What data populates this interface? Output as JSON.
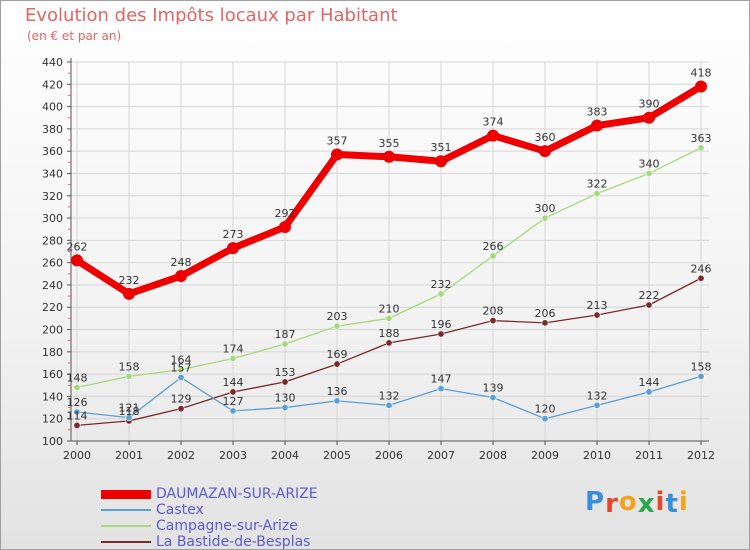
{
  "header": {
    "title": "Evolution des Impôts locaux par Habitant",
    "subtitle": "(en € et par an)"
  },
  "logo": {
    "letters": [
      "P",
      "r",
      "o",
      "x",
      "i",
      "t",
      "i"
    ],
    "colors": [
      "#3a8fd8",
      "#e8462a",
      "#f2a21b",
      "#2aa84a",
      "#e8462a",
      "#3a8fd8",
      "#f2a21b"
    ]
  },
  "colors": {
    "title": "#e46464",
    "axis_labels": "#333333",
    "grid": "#d6d6d6",
    "legend_text": "#5a5ad2"
  },
  "chart_data": {
    "type": "line",
    "title": "Evolution des Impôts locaux par Habitant",
    "subtitle": "(en € et par an)",
    "xlabel": "",
    "ylabel": "",
    "x": [
      "2000",
      "2001",
      "2002",
      "2003",
      "2004",
      "2005",
      "2006",
      "2007",
      "2008",
      "2009",
      "2010",
      "2011",
      "2012"
    ],
    "ylim": [
      100,
      440
    ],
    "yticks": [
      100,
      120,
      140,
      160,
      180,
      200,
      220,
      240,
      260,
      280,
      300,
      320,
      340,
      360,
      380,
      400,
      420,
      440
    ],
    "grid": true,
    "legend_position": "bottom-left",
    "series": [
      {
        "name": "DAUMAZAN-SUR-ARIZE",
        "color": "#ee0000",
        "width": 7,
        "marker_radius": 6,
        "values": [
          262,
          232,
          248,
          273,
          292,
          357,
          355,
          351,
          374,
          360,
          383,
          390,
          418
        ],
        "labels": [
          "262",
          "232",
          "248",
          "273",
          "292",
          "357",
          "355",
          "351",
          "374",
          "360",
          "383",
          "390",
          "418"
        ]
      },
      {
        "name": "Castex",
        "color": "#5b9fd4",
        "width": 1.3,
        "marker_radius": 3.2,
        "values": [
          126,
          121,
          157,
          127,
          130,
          136,
          132,
          147,
          139,
          120,
          132,
          144,
          158
        ],
        "labels": [
          "126",
          "121",
          "157",
          "127",
          "130",
          "136",
          "132",
          "147",
          "139",
          "120",
          "132",
          "144",
          "158"
        ]
      },
      {
        "name": "Campagne-sur-Arize",
        "color": "#a6d97a",
        "width": 1.3,
        "marker_radius": 3.2,
        "values": [
          148,
          158,
          164,
          174,
          187,
          203,
          210,
          232,
          266,
          300,
          322,
          340,
          363
        ],
        "labels": [
          "148",
          "158",
          "164",
          "174",
          "187",
          "203",
          "210",
          "232",
          "266",
          "300",
          "322",
          "340",
          "363"
        ]
      },
      {
        "name": "La Bastide-de-Besplas",
        "color": "#7a2a2a",
        "width": 1.3,
        "marker_radius": 3.2,
        "values": [
          114,
          118,
          129,
          144,
          153,
          169,
          188,
          196,
          208,
          206,
          213,
          222,
          246
        ],
        "labels": [
          "114",
          "118",
          "129",
          "144",
          "153",
          "169",
          "188",
          "196",
          "208",
          "206",
          "213",
          "222",
          "246"
        ]
      }
    ]
  }
}
